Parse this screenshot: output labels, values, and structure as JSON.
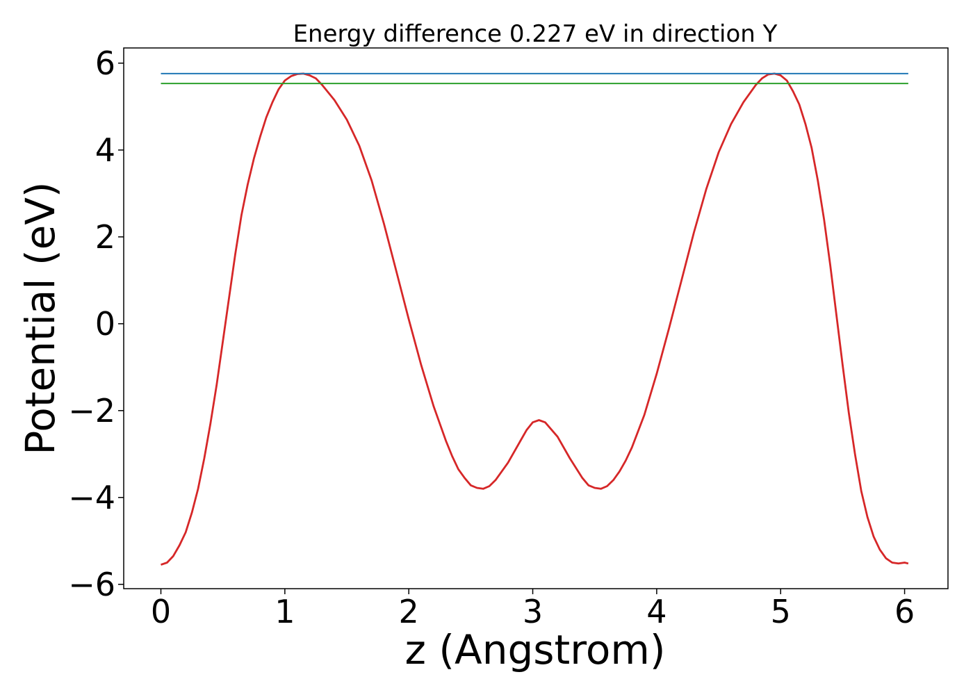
{
  "chart_data": {
    "type": "line",
    "title": "Energy difference 0.227 eV in direction Y",
    "xlabel": "z (Angstrom)",
    "ylabel": "Potential (eV)",
    "xlim": [
      -0.3,
      6.35
    ],
    "ylim": [
      -6.1,
      6.35
    ],
    "xticks": [
      0,
      1,
      2,
      3,
      4,
      5,
      6
    ],
    "xtick_labels": [
      "0",
      "1",
      "2",
      "3",
      "4",
      "5",
      "6"
    ],
    "yticks": [
      -6,
      -4,
      -2,
      0,
      2,
      4,
      6
    ],
    "ytick_labels": [
      "−6",
      "−4",
      "−2",
      "0",
      "2",
      "4",
      "6"
    ],
    "grid": false,
    "legend": "none",
    "series": [
      {
        "color": "#d62728",
        "x": [
          0,
          0.05,
          0.1,
          0.15,
          0.2,
          0.25,
          0.3,
          0.35,
          0.4,
          0.45,
          0.5,
          0.55,
          0.6,
          0.65,
          0.7,
          0.75,
          0.8,
          0.85,
          0.9,
          0.95,
          1.0,
          1.05,
          1.1,
          1.15,
          1.2,
          1.25,
          1.3,
          1.4,
          1.5,
          1.6,
          1.7,
          1.8,
          1.9,
          2.0,
          2.1,
          2.2,
          2.3,
          2.35,
          2.4,
          2.45,
          2.5,
          2.55,
          2.6,
          2.65,
          2.7,
          2.8,
          2.9,
          2.95,
          3.0,
          3.05,
          3.1,
          3.2,
          3.3,
          3.4,
          3.45,
          3.5,
          3.55,
          3.6,
          3.65,
          3.7,
          3.75,
          3.8,
          3.9,
          4.0,
          4.1,
          4.2,
          4.3,
          4.4,
          4.5,
          4.6,
          4.7,
          4.8,
          4.85,
          4.9,
          4.95,
          5.0,
          5.05,
          5.1,
          5.15,
          5.2,
          5.25,
          5.3,
          5.35,
          5.4,
          5.45,
          5.5,
          5.55,
          5.6,
          5.65,
          5.7,
          5.75,
          5.8,
          5.85,
          5.9,
          5.95,
          6.0,
          6.03
        ],
        "y": [
          -5.55,
          -5.5,
          -5.35,
          -5.1,
          -4.8,
          -4.35,
          -3.8,
          -3.1,
          -2.3,
          -1.4,
          -0.4,
          0.6,
          1.6,
          2.5,
          3.2,
          3.8,
          4.3,
          4.75,
          5.1,
          5.4,
          5.6,
          5.7,
          5.75,
          5.76,
          5.72,
          5.65,
          5.5,
          5.15,
          4.7,
          4.1,
          3.3,
          2.3,
          1.2,
          0.1,
          -0.95,
          -1.9,
          -2.7,
          -3.05,
          -3.35,
          -3.55,
          -3.72,
          -3.78,
          -3.8,
          -3.74,
          -3.6,
          -3.2,
          -2.7,
          -2.45,
          -2.27,
          -2.22,
          -2.27,
          -2.6,
          -3.1,
          -3.55,
          -3.72,
          -3.78,
          -3.8,
          -3.74,
          -3.6,
          -3.4,
          -3.15,
          -2.85,
          -2.1,
          -1.15,
          -0.1,
          1.0,
          2.1,
          3.1,
          3.95,
          4.6,
          5.1,
          5.5,
          5.65,
          5.74,
          5.76,
          5.72,
          5.6,
          5.35,
          5.05,
          4.6,
          4.05,
          3.3,
          2.4,
          1.35,
          0.2,
          -0.95,
          -2.05,
          -3.0,
          -3.85,
          -4.45,
          -4.9,
          -5.2,
          -5.4,
          -5.5,
          -5.52,
          -5.5,
          -5.52
        ]
      },
      {
        "color": "#1f77b4",
        "x": [
          0,
          6.03
        ],
        "y": [
          5.76,
          5.76
        ]
      },
      {
        "color": "#2ca02c",
        "x": [
          0,
          6.03
        ],
        "y": [
          5.533,
          5.533
        ]
      }
    ]
  }
}
